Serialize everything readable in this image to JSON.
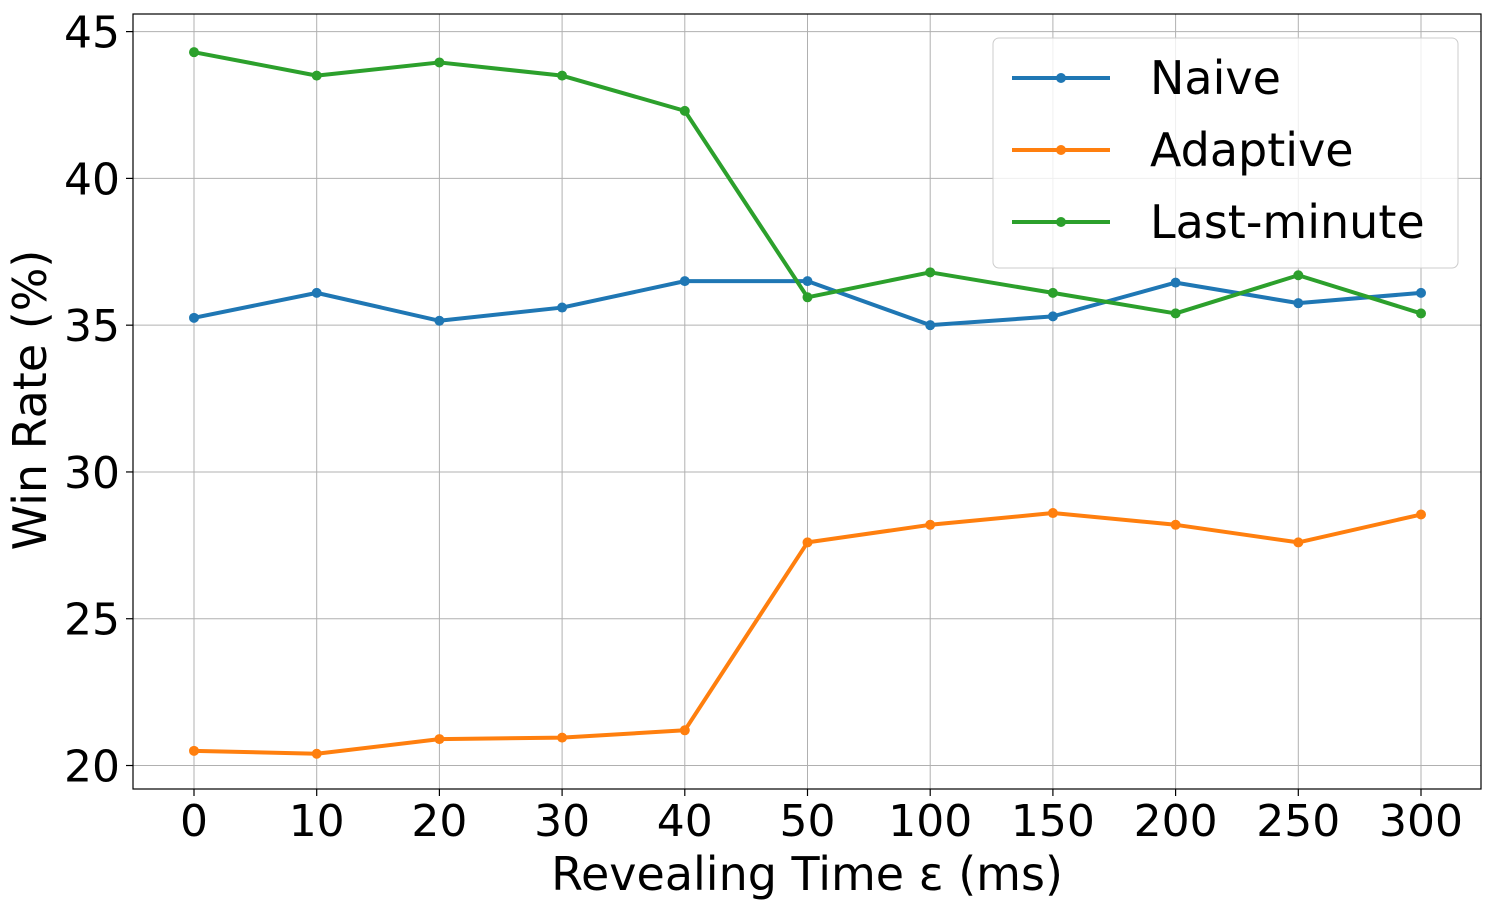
{
  "chart_data": {
    "type": "line",
    "xlabel": "Revealing Time ε (ms)",
    "ylabel": "Win Rate (%)",
    "categories": [
      "0",
      "10",
      "20",
      "30",
      "40",
      "50",
      "100",
      "150",
      "200",
      "250",
      "300"
    ],
    "ylim": [
      19.2,
      45.6
    ],
    "yticks": [
      20,
      25,
      30,
      35,
      40,
      45
    ],
    "grid": true,
    "legend_position": "top-right",
    "series": [
      {
        "name": "Naive",
        "color": "#1f77b4",
        "values": [
          35.25,
          36.1,
          35.15,
          35.6,
          36.5,
          36.5,
          35.0,
          35.3,
          36.45,
          35.75,
          36.1
        ]
      },
      {
        "name": "Adaptive",
        "color": "#ff7f0e",
        "values": [
          20.5,
          20.4,
          20.9,
          20.95,
          21.2,
          27.6,
          28.2,
          28.6,
          28.2,
          27.6,
          28.55
        ]
      },
      {
        "name": "Last-minute",
        "color": "#2ca02c",
        "values": [
          44.3,
          43.5,
          43.95,
          43.5,
          42.3,
          35.95,
          36.8,
          36.1,
          35.4,
          36.7,
          35.4
        ]
      }
    ]
  }
}
